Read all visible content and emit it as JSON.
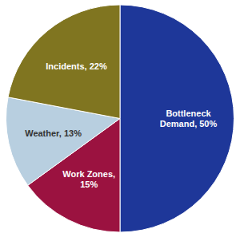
{
  "chart_data": {
    "type": "pie",
    "categories": [
      "Bottleneck\nDemand, 50%",
      "Work Zones,\n15%",
      "Weather, 13%",
      "Incidents, 22%"
    ],
    "values": [
      50,
      15,
      13,
      22
    ],
    "colors": [
      "#1e3799",
      "#9b1240",
      "#b8cfe0",
      "#807520"
    ]
  }
}
